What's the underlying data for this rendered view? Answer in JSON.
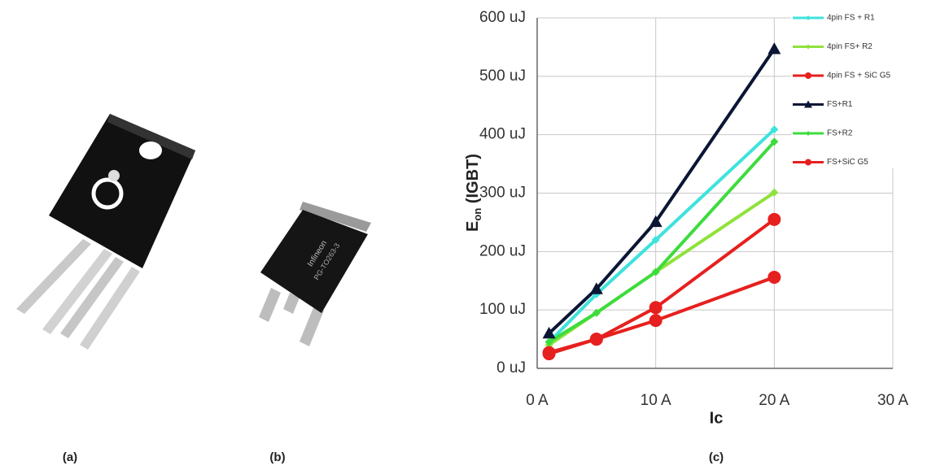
{
  "captions": [
    "(a)",
    "(b)",
    "(c)"
  ],
  "package_b_marking": [
    "Infineon",
    "PG-TO263-3"
  ],
  "chart_data": {
    "type": "line",
    "y_label": {
      "main": "E",
      "sub": "on",
      "rest": " (IGBT)"
    },
    "x_label": "Ic",
    "x": [
      1,
      5,
      10,
      20
    ],
    "xlim": [
      0,
      30
    ],
    "xticks": [
      {
        "value": 0,
        "label": "0 A"
      },
      {
        "value": 10,
        "label": "10 A"
      },
      {
        "value": 20,
        "label": "20 A"
      },
      {
        "value": 30,
        "label": "30 A"
      }
    ],
    "ylim": [
      0,
      600
    ],
    "yticks": [
      {
        "value": 0,
        "label": "0 uJ"
      },
      {
        "value": 100,
        "label": "100 uJ"
      },
      {
        "value": 200,
        "label": "200 uJ"
      },
      {
        "value": 300,
        "label": "300 uJ"
      },
      {
        "value": 400,
        "label": "400 uJ"
      },
      {
        "value": 500,
        "label": "500 uJ"
      },
      {
        "value": 600,
        "label": "600 uJ"
      }
    ],
    "grid": true,
    "legend": "upper right",
    "series": [
      {
        "name": "4pin FS + R1",
        "color": "#3de3dc",
        "marker": "diamond",
        "values": [
          45,
          127,
          220,
          409
        ]
      },
      {
        "name": "4pin FS+ R2",
        "color": "#8fe23c",
        "marker": "diamond",
        "values": [
          40,
          95,
          165,
          301
        ]
      },
      {
        "name": "4pin FS + SiC G5",
        "color": "#e6201e",
        "marker": "circle",
        "values": [
          27,
          50,
          82,
          156
        ]
      },
      {
        "name": "FS+R1",
        "color": "#0b1634",
        "marker": "triangle",
        "values": [
          60,
          136,
          251,
          547
        ]
      },
      {
        "name": "FS+R2",
        "color": "#3ddc3d",
        "marker": "diamond",
        "values": [
          45,
          95,
          165,
          388
        ]
      },
      {
        "name": "FS+SiC G5",
        "color": "#e6201e",
        "marker": "circle",
        "values": [
          25,
          50,
          104,
          255
        ]
      }
    ]
  }
}
